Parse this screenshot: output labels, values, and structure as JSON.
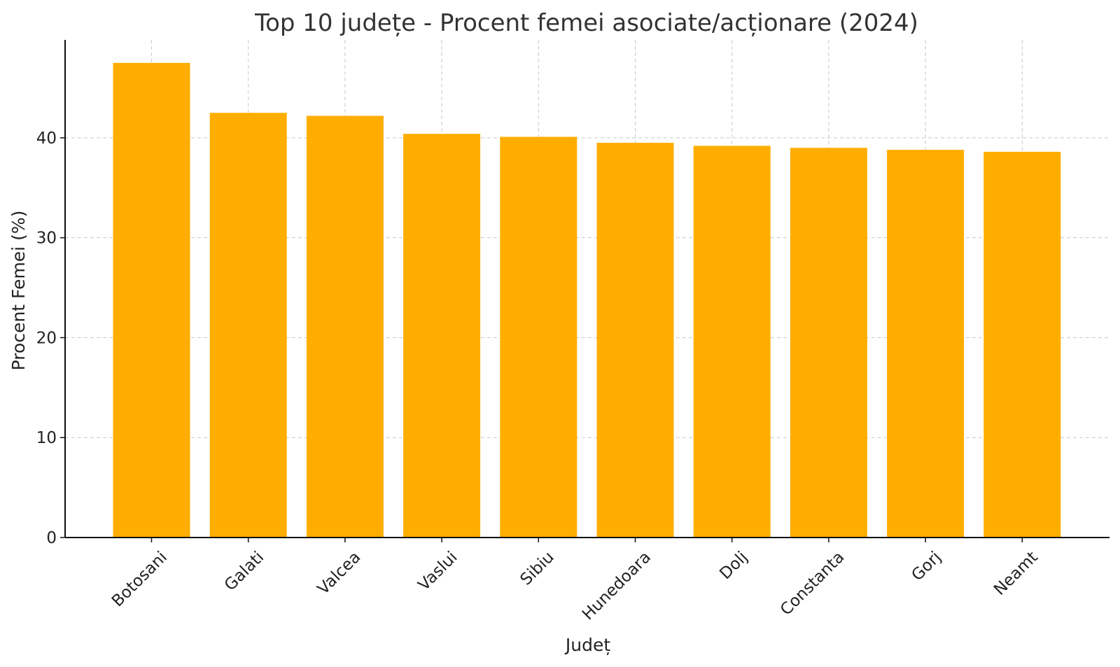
{
  "chart_data": {
    "type": "bar",
    "title": "Top 10 județe - Procent femei asociate/acționare (2024)",
    "xlabel": "Județ",
    "ylabel": "Procent Femei (%)",
    "categories": [
      "Botosani",
      "Galati",
      "Valcea",
      "Vaslui",
      "Sibiu",
      "Hunedoara",
      "Dolj",
      "Constanta",
      "Gorj",
      "Neamt"
    ],
    "values": [
      47.5,
      42.5,
      42.2,
      40.4,
      40.1,
      39.5,
      39.2,
      39.0,
      38.8,
      38.6
    ],
    "ylim": [
      0,
      49.8
    ],
    "yticks": [
      0,
      10,
      20,
      30,
      40
    ],
    "grid": true,
    "bar_color": "#FFAE00"
  }
}
